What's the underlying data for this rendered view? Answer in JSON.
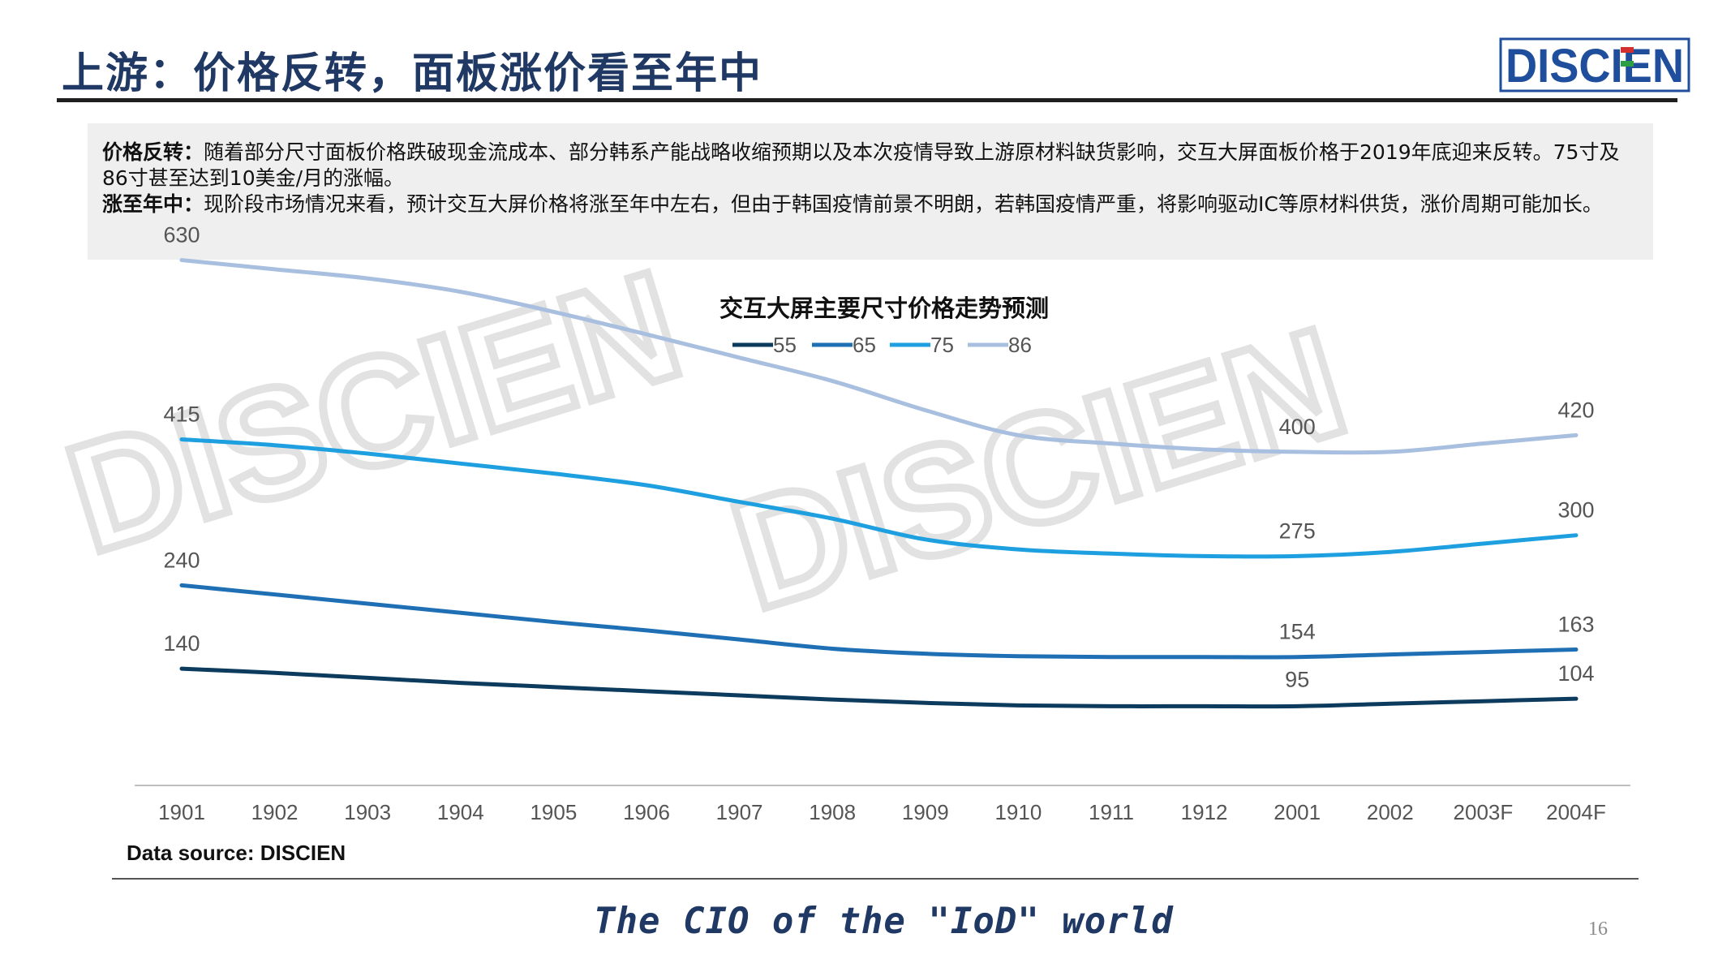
{
  "page": {
    "title": "上游：价格反转，面板涨价看至年中",
    "logo_text": "DISCIEN",
    "watermark_text": "DISCIEN",
    "summary": [
      {
        "label": "价格反转：",
        "text": "随着部分尺寸面板价格跌破现金流成本、部分韩系产能战略收缩预期以及本次疫情导致上游原材料缺货影响，交互大屏面板价格于2019年底迎来反转。75寸及86寸甚至达到10美金/月的涨幅。"
      },
      {
        "label": "涨至年中：",
        "text": "现阶段市场情况来看，预计交互大屏价格将涨至年中左右，但由于韩国疫情前景不明朗，若韩国疫情严重，将影响驱动IC等原材料供货，涨价周期可能加长。"
      }
    ],
    "source": "Data source: DISCIEN",
    "tagline": "The CIO of the \"IoD\" world",
    "page_number": "16"
  },
  "colors": {
    "title": "#1f3864",
    "logo": "#1f4e9c",
    "series": [
      "#0c3b5e",
      "#1f6fb5",
      "#1ea0e0",
      "#a9bfdf"
    ],
    "axis": "#bfbfbf",
    "label": "#555555",
    "watermark": "#d9d9d9"
  },
  "chart_data": {
    "type": "line",
    "title": "交互大屏主要尺寸价格走势预测",
    "categories": [
      "1901",
      "1902",
      "1903",
      "1904",
      "1905",
      "1906",
      "1907",
      "1908",
      "1909",
      "1910",
      "1911",
      "1912",
      "2001",
      "2002",
      "2003F",
      "2004F"
    ],
    "series": [
      {
        "name": "55",
        "values": [
          140,
          135,
          129,
          123,
          118,
          113,
          108,
          103,
          99,
          96,
          95,
          95,
          95,
          98,
          101,
          104
        ]
      },
      {
        "name": "65",
        "values": [
          240,
          229,
          218,
          207,
          196,
          186,
          175,
          164,
          158,
          155,
          154,
          154,
          154,
          157,
          160,
          163
        ]
      },
      {
        "name": "75",
        "values": [
          415,
          408,
          398,
          386,
          374,
          360,
          340,
          320,
          295,
          283,
          278,
          275,
          275,
          280,
          290,
          300
        ]
      },
      {
        "name": "86",
        "values": [
          630,
          619,
          608,
          592,
          568,
          541,
          513,
          485,
          450,
          420,
          410,
          403,
          400,
          400,
          410,
          420
        ]
      }
    ],
    "data_labels": [
      {
        "series": "55",
        "index": 0,
        "text": "140"
      },
      {
        "series": "55",
        "index": 12,
        "text": "95"
      },
      {
        "series": "55",
        "index": 15,
        "text": "104"
      },
      {
        "series": "65",
        "index": 0,
        "text": "240"
      },
      {
        "series": "65",
        "index": 12,
        "text": "154"
      },
      {
        "series": "65",
        "index": 15,
        "text": "163"
      },
      {
        "series": "75",
        "index": 0,
        "text": "415"
      },
      {
        "series": "75",
        "index": 12,
        "text": "275"
      },
      {
        "series": "75",
        "index": 15,
        "text": "300"
      },
      {
        "series": "86",
        "index": 0,
        "text": "630"
      },
      {
        "series": "86",
        "index": 12,
        "text": "400"
      },
      {
        "series": "86",
        "index": 15,
        "text": "420"
      }
    ],
    "ylim": [
      0,
      650
    ],
    "grid": false,
    "legend_position": "top-center"
  }
}
